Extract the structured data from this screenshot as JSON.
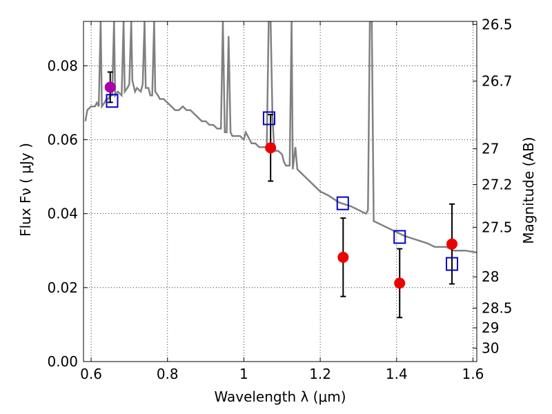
{
  "chart_data": {
    "type": "scatter",
    "title": "",
    "xlabel": "Wavelength  λ (μm)",
    "ylabel": "Flux  Fν  ( μJy )",
    "ylabel_right": "Magnitude (AB)",
    "xlim": [
      0.58,
      1.61
    ],
    "ylim": [
      0.0,
      0.092
    ],
    "grid": true,
    "x_ticks": [
      0.6,
      0.8,
      1.0,
      1.2,
      1.4,
      1.6
    ],
    "x_tick_labels": [
      "0.6",
      "0.8",
      "1",
      "1.2",
      "1.4",
      "1.6"
    ],
    "y_ticks": [
      0.0,
      0.02,
      0.04,
      0.06,
      0.08
    ],
    "y_tick_labels": [
      "0.00",
      "0.02",
      "0.04",
      "0.06",
      "0.08"
    ],
    "right_ticks": [
      {
        "label": "26.5",
        "mag": 26.5
      },
      {
        "label": "26.7",
        "mag": 26.7
      },
      {
        "label": "27",
        "mag": 27.0
      },
      {
        "label": "27.2",
        "mag": 27.2
      },
      {
        "label": "27.5",
        "mag": 27.5
      },
      {
        "label": "28",
        "mag": 28.0
      },
      {
        "label": "28.5",
        "mag": 28.5
      },
      {
        "label": "29",
        "mag": 29.0
      },
      {
        "label": "30",
        "mag": 30.0
      }
    ],
    "series": [
      {
        "kind": "spectrum",
        "color": "#808080",
        "points": [
          [
            0.585,
            0.065
          ],
          [
            0.59,
            0.068
          ],
          [
            0.6,
            0.069
          ],
          [
            0.61,
            0.069
          ],
          [
            0.615,
            0.07
          ],
          [
            0.62,
            0.069
          ],
          [
            0.625,
            0.092
          ],
          [
            0.628,
            0.069
          ],
          [
            0.635,
            0.07
          ],
          [
            0.64,
            0.071
          ],
          [
            0.645,
            0.071
          ],
          [
            0.65,
            0.072
          ],
          [
            0.655,
            0.072
          ],
          [
            0.66,
            0.092
          ],
          [
            0.663,
            0.072
          ],
          [
            0.67,
            0.073
          ],
          [
            0.68,
            0.072
          ],
          [
            0.685,
            0.092
          ],
          [
            0.688,
            0.073
          ],
          [
            0.695,
            0.074
          ],
          [
            0.7,
            0.075
          ],
          [
            0.705,
            0.092
          ],
          [
            0.708,
            0.076
          ],
          [
            0.715,
            0.073
          ],
          [
            0.72,
            0.074
          ],
          [
            0.73,
            0.073
          ],
          [
            0.735,
            0.075
          ],
          [
            0.74,
            0.092
          ],
          [
            0.743,
            0.074
          ],
          [
            0.75,
            0.074
          ],
          [
            0.755,
            0.072
          ],
          [
            0.76,
            0.072
          ],
          [
            0.765,
            0.092
          ],
          [
            0.768,
            0.073
          ],
          [
            0.775,
            0.072
          ],
          [
            0.78,
            0.071
          ],
          [
            0.79,
            0.071
          ],
          [
            0.8,
            0.07
          ],
          [
            0.81,
            0.069
          ],
          [
            0.82,
            0.068
          ],
          [
            0.83,
            0.068
          ],
          [
            0.84,
            0.069
          ],
          [
            0.85,
            0.068
          ],
          [
            0.86,
            0.068
          ],
          [
            0.87,
            0.067
          ],
          [
            0.88,
            0.066
          ],
          [
            0.89,
            0.065
          ],
          [
            0.9,
            0.065
          ],
          [
            0.91,
            0.064
          ],
          [
            0.92,
            0.064
          ],
          [
            0.93,
            0.063
          ],
          [
            0.94,
            0.063
          ],
          [
            0.945,
            0.092
          ],
          [
            0.95,
            0.062
          ],
          [
            0.955,
            0.062
          ],
          [
            0.96,
            0.088
          ],
          [
            0.965,
            0.062
          ],
          [
            0.97,
            0.061
          ],
          [
            0.98,
            0.061
          ],
          [
            0.99,
            0.061
          ],
          [
            1.0,
            0.06
          ],
          [
            1.005,
            0.062
          ],
          [
            1.01,
            0.061
          ],
          [
            1.02,
            0.059
          ],
          [
            1.03,
            0.059
          ],
          [
            1.04,
            0.058
          ],
          [
            1.05,
            0.058
          ],
          [
            1.06,
            0.058
          ],
          [
            1.065,
            0.092
          ],
          [
            1.07,
            0.092
          ],
          [
            1.075,
            0.066
          ],
          [
            1.08,
            0.057
          ],
          [
            1.09,
            0.057
          ],
          [
            1.1,
            0.056
          ],
          [
            1.105,
            0.054
          ],
          [
            1.11,
            0.053
          ],
          [
            1.12,
            0.053
          ],
          [
            1.125,
            0.092
          ],
          [
            1.128,
            0.052
          ],
          [
            1.135,
            0.058
          ],
          [
            1.14,
            0.052
          ],
          [
            1.15,
            0.051
          ],
          [
            1.16,
            0.05
          ],
          [
            1.18,
            0.048
          ],
          [
            1.2,
            0.046
          ],
          [
            1.22,
            0.045
          ],
          [
            1.25,
            0.043
          ],
          [
            1.28,
            0.042
          ],
          [
            1.3,
            0.041
          ],
          [
            1.32,
            0.04
          ],
          [
            1.325,
            0.041
          ],
          [
            1.33,
            0.092
          ],
          [
            1.335,
            0.092
          ],
          [
            1.34,
            0.038
          ],
          [
            1.36,
            0.037
          ],
          [
            1.38,
            0.036
          ],
          [
            1.4,
            0.035
          ],
          [
            1.42,
            0.034
          ],
          [
            1.45,
            0.033
          ],
          [
            1.48,
            0.032
          ],
          [
            1.5,
            0.031
          ],
          [
            1.53,
            0.031
          ],
          [
            1.55,
            0.03
          ],
          [
            1.58,
            0.03
          ],
          [
            1.61,
            0.0295
          ]
        ]
      },
      {
        "kind": "model_photometry",
        "marker": "open-square",
        "color": "#0000cc",
        "points": [
          [
            0.655,
            0.0705
          ],
          [
            1.066,
            0.0658
          ],
          [
            1.259,
            0.0428
          ],
          [
            1.408,
            0.0337
          ],
          [
            1.545,
            0.0264
          ]
        ]
      },
      {
        "kind": "observed_photometry",
        "marker": "filled-circle",
        "color": "#ee0000",
        "points": [
          {
            "x": 1.07,
            "y": 0.0578,
            "err": 0.009
          },
          {
            "x": 1.26,
            "y": 0.0282,
            "err": 0.0106
          },
          {
            "x": 1.408,
            "y": 0.0212,
            "err": 0.0093
          },
          {
            "x": 1.545,
            "y": 0.0318,
            "err": 0.0108
          }
        ]
      },
      {
        "kind": "observed_photometry_optical",
        "marker": "filled-circle",
        "color": "#aa00aa",
        "points": [
          {
            "x": 0.65,
            "y": 0.0742,
            "err": 0.0041
          }
        ]
      }
    ]
  }
}
